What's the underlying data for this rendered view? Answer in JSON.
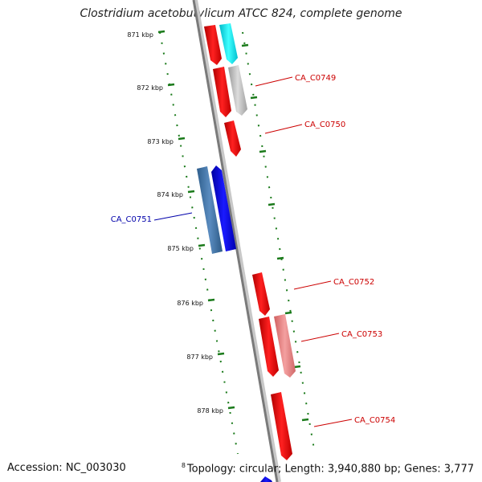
{
  "title": "Clostridium acetobutylicum ATCC 824, complete genome",
  "footer": {
    "accession": "Accession: NC_003030",
    "info": "Topology: circular; Length: 3,940,880 bp; Genes: 3,777",
    "stray_label": "8"
  },
  "colors": {
    "forward_gene": "#ff0000",
    "reverse_gene": "#0000ff",
    "forward_label": "#cc0000",
    "reverse_label": "#0000aa",
    "tick": "#1a7a1a",
    "backbone": "#888888"
  },
  "ticks": [
    {
      "label": "871 kbp"
    },
    {
      "label": "872 kbp"
    },
    {
      "label": "873 kbp"
    },
    {
      "label": "874 kbp"
    },
    {
      "label": "875 kbp"
    },
    {
      "label": "876 kbp"
    },
    {
      "label": "877 kbp"
    },
    {
      "label": "878 kbp"
    }
  ],
  "gene_labels": [
    {
      "text": "CA_C0749",
      "strand": "forward"
    },
    {
      "text": "CA_C0750",
      "strand": "forward"
    },
    {
      "text": "CA_C0751",
      "strand": "reverse"
    },
    {
      "text": "CA_C0752",
      "strand": "forward"
    },
    {
      "text": "CA_C0753",
      "strand": "forward"
    },
    {
      "text": "CA_C0754",
      "strand": "forward"
    }
  ]
}
